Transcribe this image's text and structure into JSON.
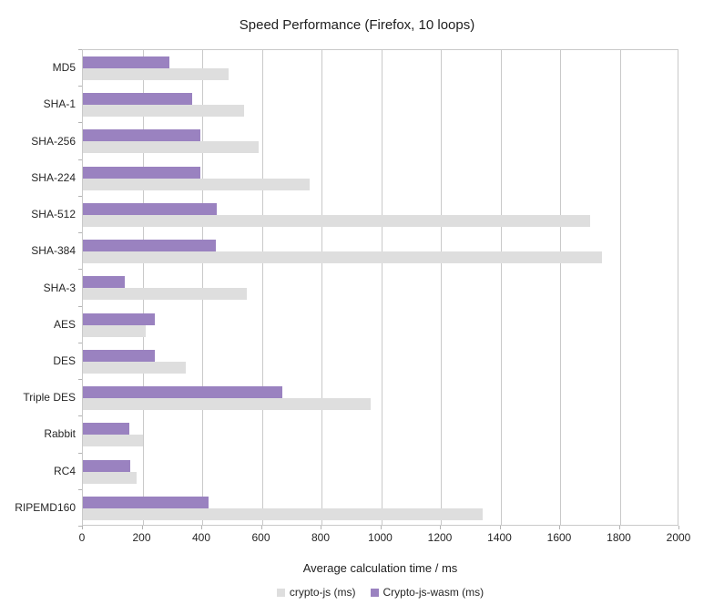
{
  "chart_data": {
    "type": "bar",
    "orientation": "horizontal",
    "title": "Speed Performance (Firefox, 10 loops)",
    "xlabel": "Average calculation time / ms",
    "ylabel": "",
    "xlim": [
      0,
      2000
    ],
    "xticks": [
      0,
      200,
      400,
      600,
      800,
      1000,
      1200,
      1400,
      1600,
      1800,
      2000
    ],
    "grid": true,
    "legend_position": "bottom",
    "categories": [
      "MD5",
      "SHA-1",
      "SHA-256",
      "SHA-224",
      "SHA-512",
      "SHA-384",
      "SHA-3",
      "AES",
      "DES",
      "Triple DES",
      "Rabbit",
      "RC4",
      "RIPEMD160"
    ],
    "series": [
      {
        "name": "crypto-js (ms)",
        "color": "#dedede",
        "values": [
          490,
          540,
          590,
          760,
          1700,
          1740,
          550,
          210,
          345,
          965,
          200,
          180,
          1340
        ]
      },
      {
        "name": "Crypto-js-wasm (ms)",
        "color": "#9a82c0",
        "values": [
          290,
          365,
          395,
          395,
          450,
          445,
          140,
          240,
          240,
          670,
          155,
          160,
          420
        ]
      }
    ],
    "colors": {
      "gridline": "#c9c9c9",
      "axis_tick": "#b3b3b3",
      "text": "#262626"
    }
  }
}
